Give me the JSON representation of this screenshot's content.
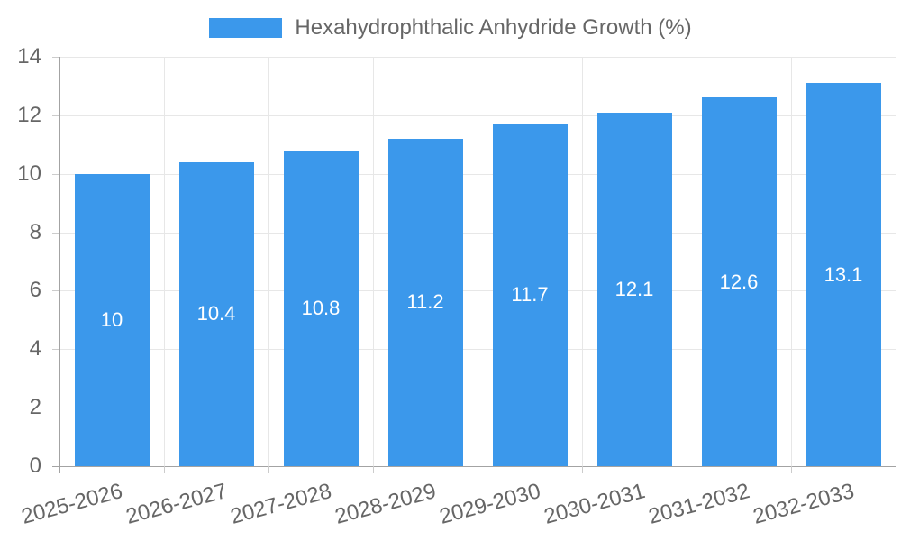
{
  "legend": {
    "label": "Hexahydrophthalic Anhydride Growth (%)"
  },
  "chart_data": {
    "type": "bar",
    "title": "Hexahydrophthalic Anhydride Growth (%)",
    "categories": [
      "2025-2026",
      "2026-2027",
      "2027-2028",
      "2028-2029",
      "2029-2030",
      "2030-2031",
      "2031-2032",
      "2032-2033"
    ],
    "values": [
      10,
      10.4,
      10.8,
      11.2,
      11.7,
      12.1,
      12.6,
      13.1
    ],
    "data_labels": [
      "10",
      "10.4",
      "10.8",
      "11.2",
      "11.7",
      "12.1",
      "12.6",
      "13.1"
    ],
    "xlabel": "",
    "ylabel": "",
    "ylim": [
      0,
      14
    ],
    "yticks": [
      0,
      2,
      4,
      6,
      8,
      10,
      12,
      14
    ],
    "grid": true,
    "legend_position": "top",
    "colors": {
      "bar": "#3b98eb",
      "grid": "#e7e7e7",
      "axis": "#a3a3a3",
      "tick": "#cccccc",
      "text": "#666666",
      "bar_label": "#ffffff",
      "background": "#ffffff"
    }
  }
}
